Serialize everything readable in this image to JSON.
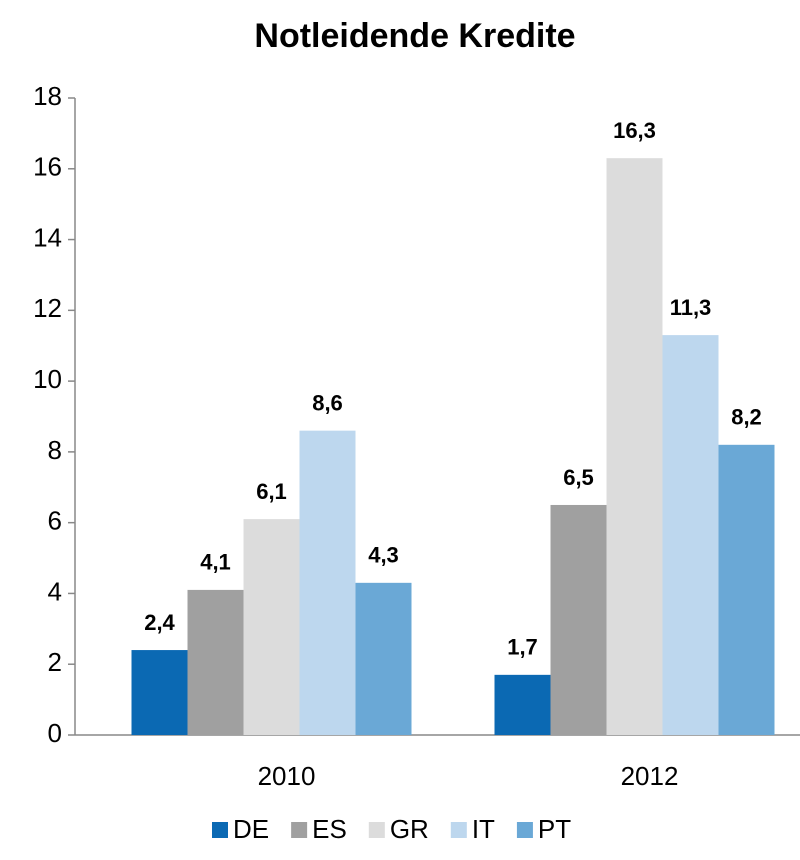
{
  "chart_data": {
    "type": "bar",
    "title": "Notleidende Kredite",
    "categories": [
      "2010",
      "2012"
    ],
    "series": [
      {
        "name": "DE",
        "color": "#0b69b3",
        "values": [
          2.4,
          1.7
        ],
        "value_labels": [
          "2,4",
          "1,7"
        ]
      },
      {
        "name": "ES",
        "color": "#a0a0a0",
        "values": [
          4.1,
          6.5
        ],
        "value_labels": [
          "4,1",
          "6,5"
        ]
      },
      {
        "name": "GR",
        "color": "#dcdcdc",
        "values": [
          6.1,
          16.3
        ],
        "value_labels": [
          "6,1",
          "16,3"
        ]
      },
      {
        "name": "IT",
        "color": "#bdd7ee",
        "values": [
          8.6,
          11.3
        ],
        "value_labels": [
          "8,6",
          "11,3"
        ]
      },
      {
        "name": "PT",
        "color": "#6aa8d6",
        "values": [
          4.3,
          8.2
        ],
        "value_labels": [
          "4,3",
          "8,2"
        ]
      }
    ],
    "ylim": [
      0,
      18
    ],
    "yticks": [
      0,
      2,
      4,
      6,
      8,
      10,
      12,
      14,
      16,
      18
    ],
    "grid": false,
    "legend": "bottom"
  }
}
